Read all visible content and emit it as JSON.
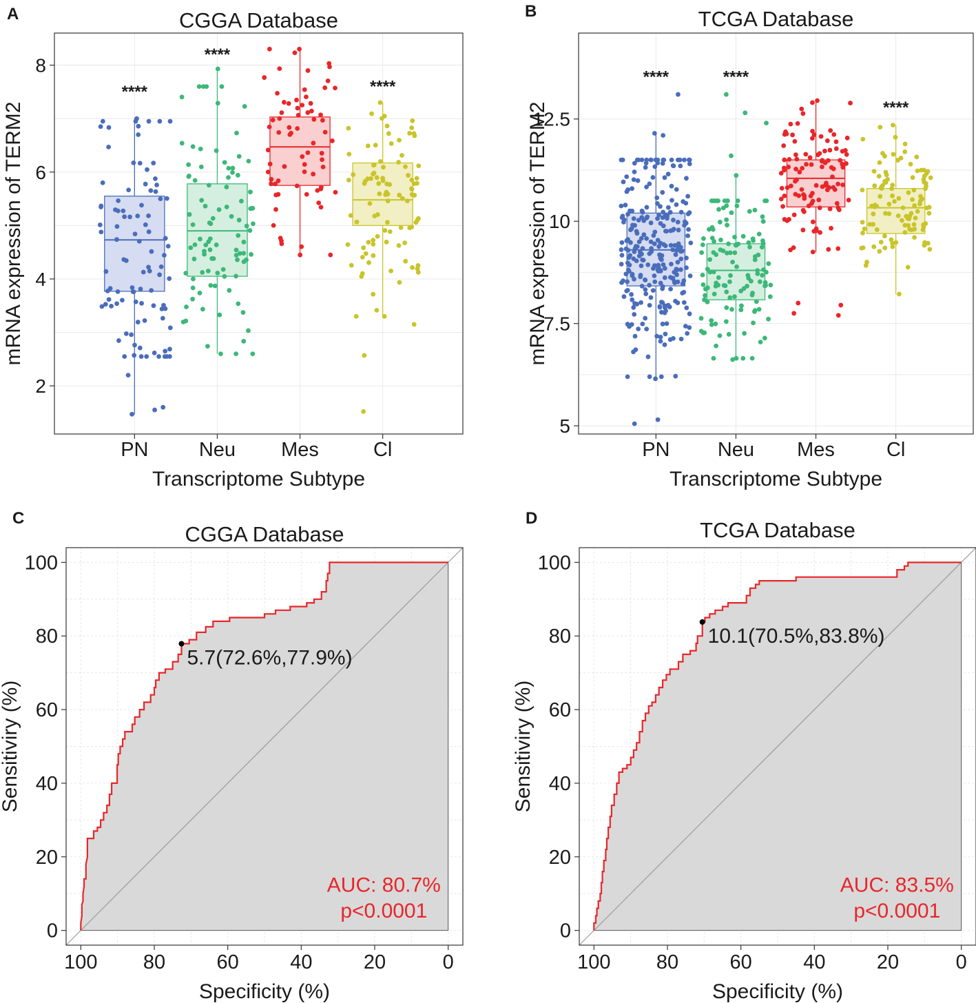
{
  "chart_data": [
    {
      "type": "box",
      "panel_label": "A",
      "title": "CGGA Database",
      "xlabel": "Transcriptome Subtype",
      "ylabel": "mRNA expression of TERM2",
      "ylim": [
        1.1,
        8.6
      ],
      "yticks": [
        2,
        4,
        6,
        8
      ],
      "ytick_labels": [
        "2",
        "4",
        "6",
        "8"
      ],
      "categories": [
        "PN",
        "Neu",
        "Mes",
        "Cl"
      ],
      "colors": [
        "#4a6dbb",
        "#3cb878",
        "#e8262a",
        "#c9c42a"
      ],
      "fills": [
        "#d6dcf1",
        "#d4efdf",
        "#f9cfd0",
        "#f1efc3"
      ],
      "boxes": [
        {
          "q1": 3.77,
          "median": 4.73,
          "q3": 5.55,
          "low": 1.47,
          "high": 7.0,
          "n": 95,
          "spread_low": 2.55,
          "spread_high": 6.95
        },
        {
          "q1": 4.05,
          "median": 4.9,
          "q3": 5.78,
          "low": 2.6,
          "high": 7.93,
          "n": 95,
          "spread_low": 2.6,
          "spread_high": 7.6
        },
        {
          "q1": 5.75,
          "median": 6.47,
          "q3": 7.03,
          "low": 4.45,
          "high": 8.3,
          "n": 70,
          "spread_low": 4.45,
          "spread_high": 8.3
        },
        {
          "q1": 5.0,
          "median": 5.48,
          "q3": 6.17,
          "low": 3.3,
          "high": 7.3,
          "n": 95,
          "spread_low": 3.3,
          "spread_high": 7.2
        }
      ],
      "outliers": [
        [
          1.6,
          1.55,
          2.2
        ],
        [],
        [],
        [
          1.52,
          2.57,
          3.15
        ]
      ],
      "annotations": [
        {
          "category": 0,
          "y": 7.4,
          "text": "****"
        },
        {
          "category": 1,
          "y": 8.1,
          "text": "****"
        },
        {
          "category": 3,
          "y": 7.5,
          "text": "****"
        }
      ],
      "seed": 11
    },
    {
      "type": "box",
      "panel_label": "B",
      "title": "TCGA Database",
      "xlabel": "Transcriptome Subtype",
      "ylabel": "mRNA expression of TERM2",
      "ylim": [
        4.8,
        14.6
      ],
      "yticks": [
        5,
        7.5,
        10,
        12.5
      ],
      "ytick_labels": [
        "5",
        "7.5",
        "10",
        "12.5"
      ],
      "categories": [
        "PN",
        "Neu",
        "Mes",
        "Cl"
      ],
      "colors": [
        "#4a6dbb",
        "#3cb878",
        "#e8262a",
        "#c9c42a"
      ],
      "fills": [
        "#d6dcf1",
        "#d4efdf",
        "#f9cfd0",
        "#f1efc3"
      ],
      "boxes": [
        {
          "q1": 8.42,
          "median": 9.3,
          "q3": 10.2,
          "low": 6.15,
          "high": 12.15,
          "n": 280,
          "spread_low": 6.2,
          "spread_high": 11.5
        },
        {
          "q1": 8.08,
          "median": 8.8,
          "q3": 9.45,
          "low": 6.62,
          "high": 11.12,
          "n": 130,
          "spread_low": 6.65,
          "spread_high": 10.5
        },
        {
          "q1": 10.35,
          "median": 11.05,
          "q3": 11.5,
          "low": 9.25,
          "high": 12.95,
          "n": 110,
          "spread_low": 9.3,
          "spread_high": 12.9
        },
        {
          "q1": 9.7,
          "median": 10.33,
          "q3": 10.8,
          "low": 8.22,
          "high": 12.35,
          "n": 110,
          "spread_low": 8.3,
          "spread_high": 12.3
        }
      ],
      "outliers": [
        [
          5.05,
          5.15,
          13.1,
          12.1
        ],
        [
          13.1,
          12.65,
          12.4,
          11.6
        ],
        [
          8.0,
          7.95,
          7.75,
          7.7
        ],
        []
      ],
      "annotations": [
        {
          "category": 0,
          "y": 13.4,
          "text": "****"
        },
        {
          "category": 1,
          "y": 13.4,
          "text": "****"
        },
        {
          "category": 3,
          "y": 12.65,
          "text": "****"
        }
      ],
      "seed": 29
    },
    {
      "type": "line",
      "subtype": "roc",
      "panel_label": "C",
      "title": "CGGA Database",
      "xlabel": "Specificity (%)",
      "ylabel": "Sensitiviry (%)",
      "xlim": [
        104,
        -4
      ],
      "ylim": [
        -4,
        104
      ],
      "xticks": [
        100,
        80,
        60,
        40,
        20,
        0
      ],
      "yticks": [
        0,
        20,
        40,
        60,
        80,
        100
      ],
      "roc": [
        [
          100,
          0
        ],
        [
          100,
          2
        ],
        [
          99.7,
          4
        ],
        [
          99.7,
          7
        ],
        [
          99.4,
          8
        ],
        [
          99.4,
          10
        ],
        [
          99.1,
          12
        ],
        [
          99.1,
          14
        ],
        [
          98.6,
          14
        ],
        [
          98.6,
          18
        ],
        [
          98.2,
          20
        ],
        [
          98.2,
          25
        ],
        [
          96.5,
          25
        ],
        [
          96.5,
          27
        ],
        [
          95.5,
          27
        ],
        [
          95.5,
          28
        ],
        [
          94.6,
          28
        ],
        [
          94.6,
          30
        ],
        [
          93.8,
          30
        ],
        [
          93.8,
          32
        ],
        [
          92.9,
          32
        ],
        [
          92.9,
          34
        ],
        [
          92.2,
          34
        ],
        [
          92.2,
          37
        ],
        [
          91.6,
          37
        ],
        [
          91.6,
          40
        ],
        [
          90.1,
          40
        ],
        [
          90.1,
          45
        ],
        [
          89.8,
          45
        ],
        [
          89.8,
          48
        ],
        [
          89.3,
          48
        ],
        [
          89.3,
          50
        ],
        [
          88.6,
          50
        ],
        [
          88.6,
          52
        ],
        [
          88,
          52
        ],
        [
          88,
          54
        ],
        [
          86,
          54
        ],
        [
          86,
          56
        ],
        [
          85.3,
          56
        ],
        [
          85.3,
          58
        ],
        [
          84,
          58
        ],
        [
          84,
          60
        ],
        [
          82.8,
          60
        ],
        [
          82.8,
          62
        ],
        [
          81,
          62
        ],
        [
          81,
          64
        ],
        [
          80,
          64
        ],
        [
          80,
          66
        ],
        [
          79.6,
          66
        ],
        [
          79.6,
          68
        ],
        [
          78.7,
          68
        ],
        [
          78.7,
          70
        ],
        [
          77,
          70
        ],
        [
          77,
          71
        ],
        [
          75,
          71
        ],
        [
          75,
          73
        ],
        [
          73.5,
          73
        ],
        [
          73.5,
          75
        ],
        [
          72.6,
          75
        ],
        [
          72.6,
          77.9
        ],
        [
          70.5,
          77.9
        ],
        [
          70.5,
          79
        ],
        [
          68.5,
          79
        ],
        [
          68.5,
          81
        ],
        [
          66,
          81
        ],
        [
          66,
          82.5
        ],
        [
          64,
          82.5
        ],
        [
          64,
          84
        ],
        [
          59.5,
          84
        ],
        [
          59.5,
          85
        ],
        [
          50,
          85
        ],
        [
          50,
          86
        ],
        [
          47,
          86
        ],
        [
          47,
          87
        ],
        [
          43,
          87
        ],
        [
          43,
          88
        ],
        [
          38.5,
          88
        ],
        [
          38.5,
          89
        ],
        [
          36.5,
          89
        ],
        [
          36.5,
          90
        ],
        [
          34.5,
          90
        ],
        [
          34.5,
          92
        ],
        [
          33.2,
          92
        ],
        [
          33.2,
          95
        ],
        [
          32.8,
          95
        ],
        [
          32.8,
          97
        ],
        [
          32.3,
          97
        ],
        [
          32.3,
          100
        ],
        [
          0,
          100
        ]
      ],
      "threshold": {
        "spec": 72.6,
        "sens": 77.9,
        "label": "5.7(72.6%,77.9%)"
      },
      "auc_text": "AUC: 80.7%",
      "p_text": "p<0.0001",
      "accent": "#e8262a"
    },
    {
      "type": "line",
      "subtype": "roc",
      "panel_label": "D",
      "title": "TCGA Database",
      "xlabel": "Specificity (%)",
      "ylabel": "Sensitiviry (%)",
      "xlim": [
        104,
        -4
      ],
      "ylim": [
        -4,
        104
      ],
      "xticks": [
        100,
        80,
        60,
        40,
        20,
        0
      ],
      "yticks": [
        0,
        20,
        40,
        60,
        80,
        100
      ],
      "roc": [
        [
          100,
          0
        ],
        [
          100,
          2
        ],
        [
          99.5,
          2
        ],
        [
          99.5,
          4
        ],
        [
          99.2,
          4
        ],
        [
          99.2,
          6
        ],
        [
          98.8,
          6
        ],
        [
          98.8,
          8
        ],
        [
          98.3,
          8
        ],
        [
          98.3,
          10
        ],
        [
          98.0,
          10
        ],
        [
          98.0,
          13
        ],
        [
          97.7,
          13
        ],
        [
          97.7,
          16
        ],
        [
          97.3,
          16
        ],
        [
          97.3,
          19
        ],
        [
          96.8,
          19
        ],
        [
          96.8,
          22
        ],
        [
          96.5,
          22
        ],
        [
          96.5,
          25
        ],
        [
          96.1,
          25
        ],
        [
          96.1,
          28
        ],
        [
          95.6,
          28
        ],
        [
          95.6,
          31
        ],
        [
          95.2,
          31
        ],
        [
          95.2,
          34
        ],
        [
          94.5,
          34
        ],
        [
          94.5,
          37
        ],
        [
          93.8,
          37
        ],
        [
          93.8,
          40
        ],
        [
          93.2,
          40
        ],
        [
          93.2,
          43
        ],
        [
          92.2,
          43
        ],
        [
          92.2,
          44
        ],
        [
          91,
          44
        ],
        [
          91,
          45
        ],
        [
          90,
          45
        ],
        [
          90,
          47
        ],
        [
          89.2,
          47
        ],
        [
          89.2,
          49
        ],
        [
          88.4,
          49
        ],
        [
          88.4,
          51
        ],
        [
          87.6,
          51
        ],
        [
          87.6,
          54
        ],
        [
          86.8,
          54
        ],
        [
          86.8,
          57
        ],
        [
          86,
          57
        ],
        [
          86,
          59
        ],
        [
          85.1,
          59
        ],
        [
          85.1,
          61
        ],
        [
          84.2,
          61
        ],
        [
          84.2,
          62
        ],
        [
          83.2,
          62
        ],
        [
          83.2,
          64
        ],
        [
          82.3,
          64
        ],
        [
          82.3,
          66
        ],
        [
          81.3,
          66
        ],
        [
          81.3,
          68
        ],
        [
          80.3,
          68
        ],
        [
          80.3,
          69.5
        ],
        [
          79.3,
          69.5
        ],
        [
          79.3,
          71
        ],
        [
          77,
          71
        ],
        [
          77,
          73
        ],
        [
          75.8,
          73
        ],
        [
          75.8,
          75
        ],
        [
          73.8,
          75
        ],
        [
          73.8,
          76
        ],
        [
          72.2,
          76
        ],
        [
          72.2,
          78
        ],
        [
          71.8,
          78
        ],
        [
          71.8,
          80
        ],
        [
          70.5,
          80
        ],
        [
          70.5,
          83.8
        ],
        [
          69.8,
          83.8
        ],
        [
          69.8,
          85
        ],
        [
          68.5,
          85
        ],
        [
          68.5,
          86
        ],
        [
          67,
          86
        ],
        [
          67,
          87
        ],
        [
          65,
          87
        ],
        [
          65,
          88
        ],
        [
          63.5,
          88
        ],
        [
          63.5,
          89
        ],
        [
          58.5,
          89
        ],
        [
          58.5,
          91
        ],
        [
          57.5,
          91
        ],
        [
          57.5,
          93
        ],
        [
          56,
          93
        ],
        [
          56,
          94
        ],
        [
          55,
          94
        ],
        [
          55,
          95
        ],
        [
          45,
          95
        ],
        [
          45,
          96
        ],
        [
          17.5,
          96
        ],
        [
          17.5,
          98
        ],
        [
          15.5,
          98
        ],
        [
          15.5,
          99
        ],
        [
          14.5,
          99
        ],
        [
          14.5,
          100
        ],
        [
          0,
          100
        ]
      ],
      "threshold": {
        "spec": 70.5,
        "sens": 83.8,
        "label": "10.1(70.5%,83.8%)"
      },
      "auc_text": "AUC: 83.5%",
      "p_text": "p<0.0001",
      "accent": "#e8262a"
    }
  ]
}
